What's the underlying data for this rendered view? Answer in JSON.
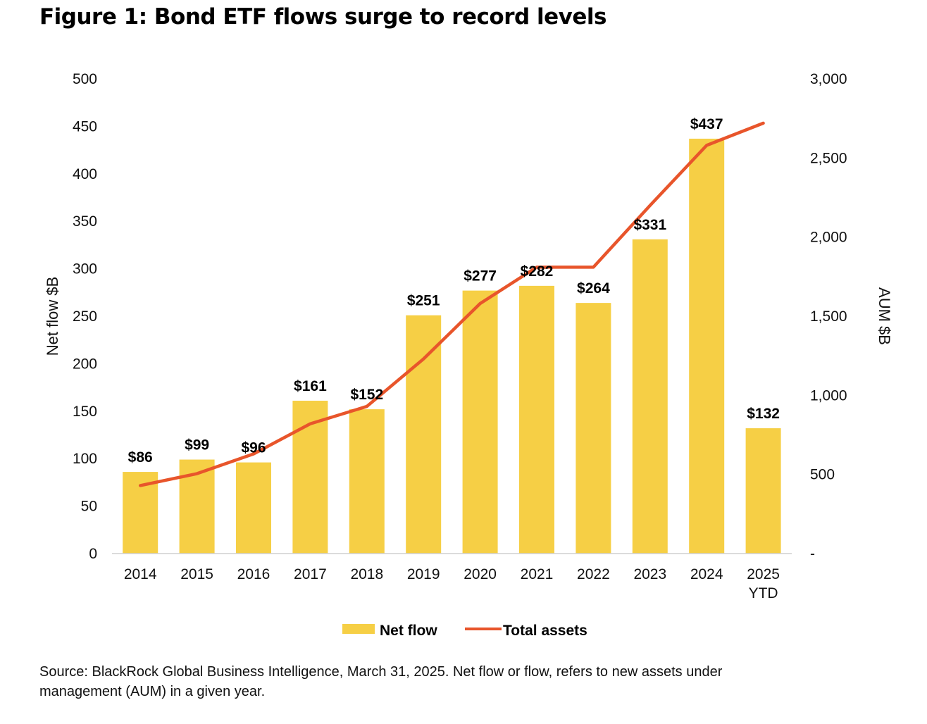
{
  "chart_data": {
    "type": "bar",
    "title": "Figure 1: Bond ETF flows surge to record levels",
    "categories": [
      "2014",
      "2015",
      "2016",
      "2017",
      "2018",
      "2019",
      "2020",
      "2021",
      "2022",
      "2023",
      "2024",
      "2025 YTD"
    ],
    "series": [
      {
        "name": "Net flow",
        "type": "bar",
        "axis": "left",
        "color": "#F6CF45",
        "values": [
          86,
          99,
          96,
          161,
          152,
          251,
          277,
          282,
          264,
          331,
          437,
          132
        ],
        "labels": [
          "$86",
          "$99",
          "$96",
          "$161",
          "$152",
          "$251",
          "$277",
          "$282",
          "$264",
          "$331",
          "$437",
          "$132"
        ]
      },
      {
        "name": "Total assets",
        "type": "line",
        "axis": "right",
        "color": "#E8552B",
        "values": [
          430,
          505,
          630,
          820,
          930,
          1230,
          1580,
          1810,
          1810,
          2200,
          2580,
          2720
        ]
      }
    ],
    "y_left": {
      "label": "Net flow $B",
      "range": [
        0,
        500
      ],
      "ticks": [
        0,
        50,
        100,
        150,
        200,
        250,
        300,
        350,
        400,
        450,
        500
      ],
      "tick_labels": [
        "0",
        "50",
        "100",
        "150",
        "200",
        "250",
        "300",
        "350",
        "400",
        "450",
        "500"
      ]
    },
    "y_right": {
      "label": "AUM $B",
      "range": [
        0,
        3000
      ],
      "ticks": [
        0,
        500,
        1000,
        1500,
        2000,
        2500,
        3000
      ],
      "tick_labels": [
        "-",
        "500",
        "1,000",
        "1,500",
        "2,000",
        "2,500",
        "3,000"
      ]
    },
    "grid": false,
    "legend": "bottom"
  },
  "source": "Source: BlackRock Global Business Intelligence, March 31, 2025. Net flow or flow, refers to new assets under management (AUM) in a given year."
}
